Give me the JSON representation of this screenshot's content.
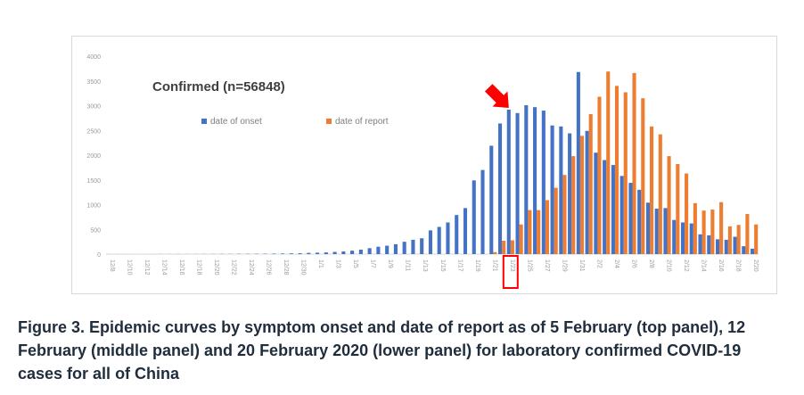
{
  "chart_data": {
    "type": "bar",
    "title": "Confirmed (n=56848)",
    "xlabel": "",
    "ylabel": "",
    "ylim": [
      0,
      4000
    ],
    "yticks": [
      0,
      500,
      1000,
      1500,
      2000,
      2500,
      3000,
      3500,
      4000
    ],
    "grid": false,
    "legend_position": "top-center",
    "categories": [
      "12/8",
      "12/9",
      "12/10",
      "12/11",
      "12/12",
      "12/13",
      "12/14",
      "12/15",
      "12/16",
      "12/17",
      "12/18",
      "12/19",
      "12/20",
      "12/21",
      "12/22",
      "12/23",
      "12/24",
      "12/25",
      "12/26",
      "12/27",
      "12/28",
      "12/29",
      "12/30",
      "12/31",
      "1/1",
      "1/2",
      "1/3",
      "1/4",
      "1/5",
      "1/6",
      "1/7",
      "1/8",
      "1/9",
      "1/10",
      "1/11",
      "1/12",
      "1/13",
      "1/14",
      "1/15",
      "1/16",
      "1/17",
      "1/18",
      "1/19",
      "1/20",
      "1/21",
      "1/22",
      "1/23",
      "1/24",
      "1/25",
      "1/26",
      "1/27",
      "1/28",
      "1/29",
      "1/30",
      "1/31",
      "2/1",
      "2/2",
      "2/3",
      "2/4",
      "2/5",
      "2/6",
      "2/7",
      "2/8",
      "2/9",
      "2/10",
      "2/11",
      "2/12",
      "2/13",
      "2/14",
      "2/15",
      "2/16",
      "2/17",
      "2/18",
      "2/19",
      "2/20"
    ],
    "tick_labels": [
      "12/8",
      "12/10",
      "12/12",
      "12/14",
      "12/16",
      "12/18",
      "12/20",
      "12/22",
      "12/24",
      "12/26",
      "12/28",
      "12/30",
      "1/1",
      "1/3",
      "1/5",
      "1/7",
      "1/9",
      "1/11",
      "1/13",
      "1/15",
      "1/17",
      "1/19",
      "1/21",
      "1/23",
      "1/25",
      "1/27",
      "1/29",
      "1/31",
      "2/2",
      "2/4",
      "2/6",
      "2/8",
      "2/10",
      "2/12",
      "2/14",
      "2/16",
      "2/18",
      "2/20"
    ],
    "highlighted_category": "1/23",
    "series": [
      {
        "name": "date of onset",
        "color": "#4472c4",
        "values": [
          1,
          1,
          1,
          1,
          1,
          1,
          2,
          2,
          2,
          2,
          2,
          3,
          3,
          4,
          4,
          5,
          6,
          7,
          8,
          10,
          12,
          15,
          18,
          25,
          30,
          35,
          45,
          55,
          70,
          90,
          120,
          150,
          170,
          200,
          250,
          290,
          320,
          480,
          550,
          640,
          790,
          930,
          1490,
          1700,
          2190,
          2640,
          2920,
          2850,
          3010,
          2970,
          2900,
          2600,
          2580,
          2440,
          3680,
          2490,
          2050,
          1900,
          1800,
          1580,
          1440,
          1300,
          1040,
          920,
          930,
          690,
          640,
          620,
          400,
          380,
          300,
          290,
          350,
          160,
          110
        ]
      },
      {
        "name": "date of report",
        "color": "#ed7d31",
        "values": [
          0,
          0,
          0,
          0,
          0,
          0,
          0,
          0,
          0,
          0,
          0,
          0,
          0,
          0,
          0,
          0,
          0,
          0,
          0,
          0,
          0,
          0,
          0,
          0,
          0,
          0,
          0,
          0,
          0,
          0,
          0,
          0,
          0,
          0,
          0,
          0,
          0,
          0,
          0,
          0,
          0,
          0,
          0,
          0,
          40,
          270,
          280,
          600,
          890,
          890,
          1090,
          1340,
          1600,
          1980,
          2390,
          2830,
          3180,
          3690,
          3400,
          3270,
          3660,
          3150,
          2580,
          2420,
          1980,
          1820,
          1630,
          1030,
          880,
          900,
          1050,
          560,
          590,
          810,
          600
        ]
      }
    ]
  },
  "caption": "Figure 3.  Epidemic curves by symptom onset and date of report as of 5 February (top panel), 12 February (middle panel) and 20 February 2020 (lower panel) for laboratory confirmed COVID-19 cases for all of China",
  "annotation": {
    "arrow_color": "#ff0000",
    "box_color": "#ff0000"
  }
}
